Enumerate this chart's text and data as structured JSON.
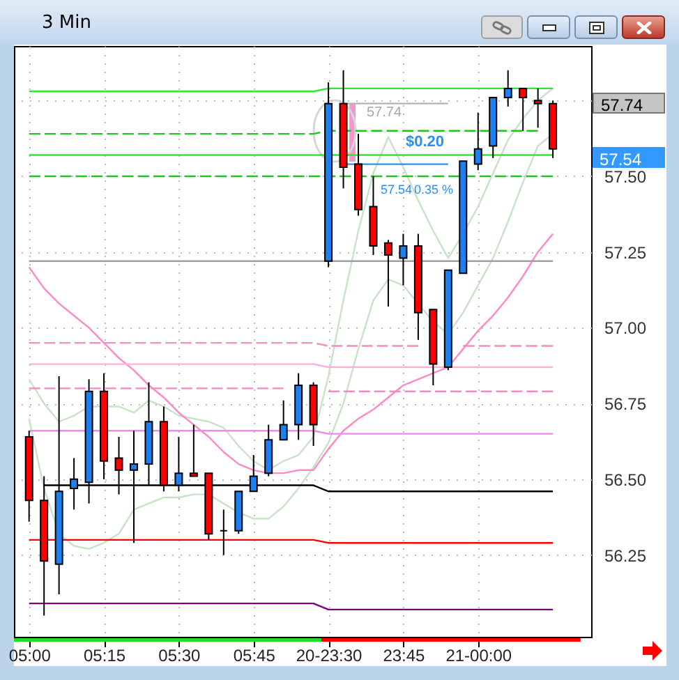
{
  "chart_data": {
    "type": "candlestick",
    "title": "3 Min",
    "categories": [
      "05:00",
      null,
      null,
      null,
      null,
      "05:15",
      null,
      null,
      null,
      null,
      "05:30",
      null,
      null,
      null,
      null,
      "05:45",
      null,
      null,
      null,
      null,
      "20-23:30",
      null,
      null,
      null,
      null,
      "23:45",
      null,
      null,
      null,
      null,
      "21-00:00",
      null,
      null,
      null,
      null,
      null
    ],
    "ohlc": [
      [
        56.64,
        56.66,
        56.36,
        56.43
      ],
      [
        56.43,
        56.51,
        56.05,
        56.23
      ],
      [
        56.22,
        56.84,
        56.12,
        56.46
      ],
      [
        56.47,
        56.57,
        56.4,
        56.5
      ],
      [
        56.49,
        56.83,
        56.42,
        56.79
      ],
      [
        56.79,
        56.85,
        56.5,
        56.56
      ],
      [
        56.57,
        56.64,
        56.45,
        56.53
      ],
      [
        56.53,
        56.66,
        56.29,
        56.55
      ],
      [
        56.55,
        56.82,
        56.48,
        56.69
      ],
      [
        56.69,
        56.74,
        56.46,
        56.48
      ],
      [
        56.48,
        56.64,
        56.46,
        56.52
      ],
      [
        56.52,
        56.68,
        56.51,
        56.51
      ],
      [
        56.52,
        56.52,
        56.3,
        56.32
      ],
      [
        56.33,
        56.4,
        56.25,
        56.33
      ],
      [
        56.33,
        56.46,
        56.32,
        56.46
      ],
      [
        56.46,
        56.58,
        56.46,
        56.51
      ],
      [
        56.52,
        56.68,
        56.51,
        56.63
      ],
      [
        56.63,
        56.76,
        56.63,
        56.68
      ],
      [
        56.68,
        56.85,
        56.63,
        56.81
      ],
      [
        56.81,
        56.82,
        56.61,
        56.68
      ],
      [
        57.22,
        57.81,
        57.2,
        57.74
      ],
      [
        57.74,
        57.85,
        57.46,
        57.53
      ],
      [
        57.54,
        57.64,
        57.37,
        57.39
      ],
      [
        57.4,
        57.5,
        57.24,
        57.27
      ],
      [
        57.28,
        57.29,
        57.07,
        57.24
      ],
      [
        57.23,
        57.31,
        57.14,
        57.27
      ],
      [
        57.27,
        57.31,
        56.96,
        57.05
      ],
      [
        57.06,
        57.06,
        56.81,
        56.88
      ],
      [
        56.87,
        57.19,
        56.86,
        57.19
      ],
      [
        57.18,
        57.55,
        57.18,
        57.55
      ],
      [
        57.54,
        57.71,
        57.52,
        57.59
      ],
      [
        57.6,
        57.76,
        57.56,
        57.76
      ],
      [
        57.76,
        57.85,
        57.73,
        57.79
      ],
      [
        57.79,
        57.79,
        57.65,
        57.76
      ],
      [
        57.75,
        57.79,
        57.66,
        57.74
      ],
      [
        57.74,
        57.75,
        57.56,
        57.59
      ]
    ],
    "colors": [
      "#ff0000",
      "#ff0000",
      "#1e7ff0",
      "#1e7ff0",
      "#1e7ff0",
      "#ff0000",
      "#ff0000",
      "#1e7ff0",
      "#1e7ff0",
      "#ff0000",
      "#1e7ff0",
      "#ff0000",
      "#ff0000",
      "#000000",
      "#1e7ff0",
      "#1e7ff0",
      "#1e7ff0",
      "#1e7ff0",
      "#1e7ff0",
      "#ff0000",
      "#1e7ff0",
      "#ff0000",
      "#ff0000",
      "#ff0000",
      "#ff0000",
      "#1e7ff0",
      "#ff0000",
      "#ff0000",
      "#1e7ff0",
      "#1e7ff0",
      "#1e7ff0",
      "#1e7ff0",
      "#1e7ff0",
      "#ff0000",
      "#ff0000",
      "#ff0000"
    ],
    "series": [
      {
        "type": "line",
        "color": "#c8e2c8",
        "values": [
          56.83,
          56.75,
          56.69,
          56.71,
          56.74,
          56.74,
          56.74,
          56.72,
          56.76,
          56.74,
          56.71,
          56.7,
          56.69,
          56.67,
          56.61,
          56.56,
          56.53,
          56.56,
          56.58,
          56.64,
          56.84,
          57.09,
          57.32,
          57.51,
          57.63,
          57.53,
          57.42,
          57.32,
          57.23,
          57.31,
          57.4,
          57.51,
          57.62,
          57.69,
          57.75,
          57.79
        ]
      },
      {
        "type": "line",
        "color": "#c8e2c8",
        "values": [
          56.7,
          56.47,
          56.32,
          56.28,
          56.27,
          56.29,
          56.32,
          56.4,
          56.42,
          56.44,
          56.44,
          56.45,
          56.45,
          56.42,
          56.39,
          56.37,
          56.37,
          56.41,
          56.47,
          56.54,
          56.62,
          56.75,
          56.93,
          57.09,
          57.16,
          57.14,
          57.08,
          57.02,
          56.98,
          57.05,
          57.14,
          57.23,
          57.35,
          57.48,
          57.6,
          57.64
        ]
      },
      {
        "type": "line",
        "color": "#ff88c8",
        "values": [
          57.2,
          57.13,
          57.08,
          57.04,
          57.0,
          56.95,
          56.9,
          56.86,
          56.81,
          56.77,
          56.72,
          56.68,
          56.64,
          56.59,
          56.55,
          56.53,
          56.52,
          56.52,
          56.53,
          56.53,
          56.6,
          56.66,
          56.7,
          56.73,
          56.77,
          56.81,
          56.83,
          56.85,
          56.87,
          56.93,
          56.99,
          57.04,
          57.1,
          57.17,
          57.25,
          57.31
        ]
      },
      {
        "type": "line",
        "color": "#2ee82e",
        "values": [
          57.78,
          57.78,
          57.78,
          57.78,
          57.78,
          57.78,
          57.78,
          57.78,
          57.78,
          57.78,
          57.78,
          57.78,
          57.78,
          57.78,
          57.78,
          57.78,
          57.78,
          57.78,
          57.78,
          57.78,
          57.79,
          57.79,
          57.79,
          57.79,
          57.79,
          57.79,
          57.79,
          57.79,
          57.79,
          57.79,
          57.79,
          57.79,
          57.79,
          57.79,
          57.79,
          57.79
        ]
      },
      {
        "type": "line",
        "color": "#22c322",
        "line_style": "dashed",
        "values": [
          57.64,
          57.64,
          57.64,
          57.64,
          57.64,
          57.64,
          57.64,
          57.64,
          57.64,
          57.64,
          57.64,
          57.64,
          57.64,
          57.64,
          57.64,
          57.64,
          57.64,
          57.64,
          57.64,
          57.64,
          57.65,
          57.65,
          57.65,
          57.65,
          57.65,
          57.65,
          57.65,
          57.65,
          57.65,
          57.65,
          57.65,
          57.65,
          57.65,
          57.65,
          57.65,
          null
        ]
      },
      {
        "type": "line",
        "color": "#2ee82e",
        "values": [
          57.57,
          57.57,
          57.57,
          57.57,
          57.57,
          57.57,
          57.57,
          57.57,
          57.57,
          57.57,
          57.57,
          57.57,
          57.57,
          57.57,
          57.57,
          57.57,
          57.57,
          57.57,
          57.57,
          57.57,
          57.57,
          57.57,
          57.57,
          57.57,
          57.57,
          57.57,
          57.57,
          57.57,
          57.57,
          57.57,
          57.57,
          57.57,
          57.57,
          57.57,
          57.57,
          57.57
        ]
      },
      {
        "type": "line",
        "color": "#22c322",
        "line_style": "dashed",
        "values": [
          57.5,
          57.5,
          57.5,
          57.5,
          57.5,
          57.5,
          57.5,
          57.5,
          57.5,
          57.5,
          57.5,
          57.5,
          57.5,
          57.5,
          57.5,
          57.5,
          57.5,
          57.5,
          57.5,
          57.5,
          57.5,
          57.5,
          57.5,
          57.5,
          57.5,
          57.5,
          57.5,
          57.5,
          57.5,
          57.5,
          57.5,
          57.5,
          57.5,
          57.5,
          57.5,
          57.5
        ]
      },
      {
        "type": "line",
        "color": "#a0a0a0",
        "values": [
          57.22,
          57.22,
          57.22,
          57.22,
          57.22,
          57.22,
          57.22,
          57.22,
          57.22,
          57.22,
          57.22,
          57.22,
          57.22,
          57.22,
          57.22,
          57.22,
          57.22,
          57.22,
          57.22,
          57.22,
          57.22,
          57.22,
          57.22,
          57.22,
          57.22,
          57.22,
          57.22,
          57.22,
          57.22,
          57.22,
          57.22,
          57.22,
          57.22,
          57.22,
          57.22,
          57.22
        ]
      },
      {
        "type": "line",
        "color": "#f08cc0",
        "line_style": "dashed",
        "values": [
          56.95,
          56.95,
          56.95,
          56.95,
          56.95,
          56.95,
          56.95,
          56.95,
          56.95,
          56.95,
          56.95,
          56.95,
          56.95,
          56.95,
          56.95,
          56.95,
          56.95,
          56.95,
          56.95,
          56.95,
          56.94,
          56.94,
          56.94,
          56.94,
          56.94,
          56.94,
          56.94,
          null,
          null,
          56.94,
          56.94,
          56.94,
          56.94,
          56.94,
          56.94,
          56.94
        ]
      },
      {
        "type": "line",
        "color": "#ffb0d8",
        "values": [
          56.88,
          56.88,
          56.88,
          56.88,
          56.88,
          56.88,
          56.88,
          56.88,
          56.88,
          56.88,
          56.88,
          56.88,
          56.88,
          56.88,
          56.88,
          56.88,
          56.88,
          56.88,
          56.88,
          56.88,
          56.87,
          56.87,
          56.87,
          56.87,
          56.87,
          56.87,
          56.87,
          56.87,
          56.87,
          56.87,
          56.87,
          56.87,
          56.87,
          56.87,
          56.87,
          56.87
        ]
      },
      {
        "type": "line",
        "color": "#f08cc0",
        "line_style": "dashed",
        "values": [
          56.8,
          56.8,
          56.8,
          56.8,
          56.8,
          56.8,
          56.8,
          56.8,
          56.8,
          56.8,
          56.8,
          56.8,
          56.8,
          56.8,
          56.8,
          56.8,
          56.8,
          56.8,
          null,
          null,
          56.79,
          56.79,
          56.79,
          56.79,
          56.79,
          56.79,
          56.79,
          56.79,
          56.79,
          56.79,
          56.79,
          56.79,
          56.79,
          56.79,
          56.79,
          56.79
        ]
      },
      {
        "type": "line",
        "color": "#ee88ee",
        "values": [
          56.66,
          56.66,
          56.66,
          56.66,
          56.66,
          56.66,
          56.66,
          56.66,
          56.66,
          56.66,
          56.66,
          56.66,
          56.66,
          56.66,
          56.66,
          56.66,
          56.66,
          56.66,
          56.66,
          56.66,
          56.65,
          56.65,
          56.65,
          56.65,
          56.65,
          56.65,
          56.65,
          56.65,
          56.65,
          56.65,
          56.65,
          56.65,
          56.65,
          56.65,
          56.65,
          56.65
        ]
      },
      {
        "type": "line",
        "color": "#000000",
        "values": [
          null,
          56.48,
          56.48,
          56.48,
          56.48,
          56.48,
          56.48,
          56.48,
          56.48,
          56.48,
          56.48,
          56.48,
          56.48,
          56.48,
          56.48,
          56.48,
          56.48,
          56.48,
          56.48,
          56.48,
          56.46,
          56.46,
          56.46,
          56.46,
          56.46,
          56.46,
          56.46,
          56.46,
          56.46,
          56.46,
          56.46,
          56.46,
          56.46,
          56.46,
          56.46,
          56.46
        ]
      },
      {
        "type": "line",
        "color": "#ff0000",
        "values": [
          56.3,
          56.3,
          56.3,
          56.3,
          56.3,
          56.3,
          56.3,
          56.3,
          56.3,
          56.3,
          56.3,
          56.3,
          56.3,
          56.3,
          56.3,
          56.3,
          56.3,
          56.3,
          56.3,
          56.3,
          56.29,
          56.29,
          56.29,
          56.29,
          56.29,
          56.29,
          56.29,
          56.29,
          56.29,
          56.29,
          56.29,
          56.29,
          56.29,
          56.29,
          56.29,
          56.29
        ]
      },
      {
        "type": "line",
        "color": "#800080",
        "values": [
          56.09,
          56.09,
          56.09,
          56.09,
          56.09,
          56.09,
          56.09,
          56.09,
          56.09,
          56.09,
          56.09,
          56.09,
          56.09,
          56.09,
          56.09,
          56.09,
          56.09,
          56.09,
          56.09,
          56.09,
          56.07,
          56.07,
          56.07,
          56.07,
          56.07,
          56.07,
          56.07,
          56.07,
          56.07,
          56.07,
          56.07,
          56.07,
          56.07,
          56.07,
          56.07,
          56.07
        ]
      },
      {
        "type": "line",
        "color": "#b4b4b4",
        "values": [
          null,
          null,
          null,
          null,
          null,
          null,
          null,
          null,
          null,
          null,
          null,
          null,
          null,
          null,
          null,
          null,
          null,
          null,
          null,
          null,
          null,
          57.74,
          57.74,
          57.74,
          57.74,
          57.74,
          57.74,
          57.74,
          57.74,
          null,
          null,
          null,
          null,
          null,
          null,
          null
        ]
      },
      {
        "type": "line",
        "color": "#2f8ff0",
        "values": [
          null,
          null,
          null,
          null,
          null,
          null,
          null,
          null,
          null,
          null,
          null,
          null,
          null,
          null,
          null,
          null,
          null,
          null,
          null,
          null,
          null,
          57.54,
          57.54,
          57.54,
          57.54,
          57.54,
          57.54,
          57.54,
          57.54,
          null,
          null,
          null,
          null,
          null,
          null,
          null
        ]
      }
    ],
    "ylim": [
      55.98,
      57.93
    ],
    "yticks": [
      {
        "value": 56.25,
        "label": "56.25"
      },
      {
        "value": 56.5,
        "label": "56.50"
      },
      {
        "value": 56.75,
        "label": "56.75"
      },
      {
        "value": 57,
        "label": "57.00"
      },
      {
        "value": 57.25,
        "label": "57.25"
      },
      {
        "value": 57.5,
        "label": "57.50"
      },
      {
        "value": 57.75,
        "label": null
      }
    ],
    "grid": true,
    "annotations": [
      "57.74",
      "$0.20",
      "57.54",
      "0.35 %",
      "57.74",
      "57.54"
    ]
  }
}
